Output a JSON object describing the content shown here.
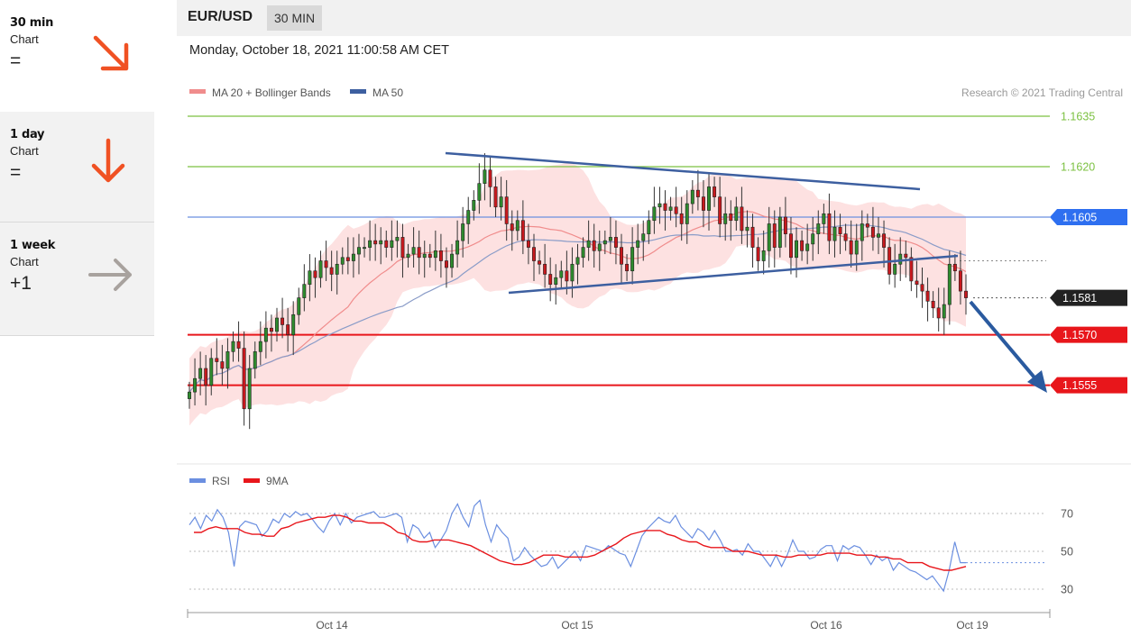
{
  "sidebar": {
    "items": [
      {
        "title": "30 min",
        "sub": "Chart",
        "sym": "=",
        "direction": "down-right",
        "color": "#f05123"
      },
      {
        "title": "1 day",
        "sub": "Chart",
        "sym": "=",
        "direction": "down",
        "color": "#f05123"
      },
      {
        "title": "1 week",
        "sub": "Chart",
        "sym": "+1",
        "direction": "right",
        "color": "#a8a29e"
      }
    ]
  },
  "header": {
    "pair": "EUR/USD",
    "timeframe": "30 MIN",
    "datetime": "Monday, October 18, 2021 11:00:58 AM CET"
  },
  "chart_data": [
    {
      "type": "candlestick",
      "legend": [
        {
          "name": "MA 20 + Bollinger Bands",
          "color": "#f08c8c"
        },
        {
          "name": "MA 50",
          "color": "#3d5fa0"
        }
      ],
      "legend_placement": "top-left",
      "credit": "Research © 2021 Trading Central",
      "ylim": [
        1.1542,
        1.164
      ],
      "x_labels": [
        "Oct 14",
        "Oct 15",
        "Oct 16",
        "Oct 19"
      ],
      "levels": [
        {
          "label": "1.1635",
          "value": 1.1635,
          "color": "#7cc142",
          "style": "line"
        },
        {
          "label": "1.1620",
          "value": 1.162,
          "color": "#7cc142",
          "style": "line"
        },
        {
          "label": "1.1605",
          "value": 1.1605,
          "color": "#6b8fe0",
          "style": "line",
          "tag_color": "#2e6ff0"
        },
        {
          "label": "1.1581",
          "value": 1.1581,
          "color": "#444444",
          "style": "dotted",
          "tag_color": "#222222"
        },
        {
          "label": "1.1570",
          "value": 1.157,
          "color": "#e8161b",
          "style": "line",
          "tag_color": "#e8161b"
        },
        {
          "label": "1.1555",
          "value": 1.1555,
          "color": "#e8161b",
          "style": "line",
          "tag_color": "#e8161b"
        }
      ],
      "close_series": [
        1.1553,
        1.1557,
        1.156,
        1.1555,
        1.1563,
        1.1562,
        1.156,
        1.1565,
        1.1568,
        1.1566,
        1.1548,
        1.156,
        1.1565,
        1.1568,
        1.1572,
        1.1571,
        1.1575,
        1.1573,
        1.157,
        1.1576,
        1.1581,
        1.1585,
        1.1589,
        1.1587,
        1.1592,
        1.159,
        1.1588,
        1.1591,
        1.1593,
        1.1592,
        1.1594,
        1.1596,
        1.1596,
        1.1598,
        1.1597,
        1.1598,
        1.1596,
        1.1598,
        1.1599,
        1.1593,
        1.1594,
        1.1596,
        1.1593,
        1.1594,
        1.1593,
        1.1595,
        1.1592,
        1.159,
        1.1594,
        1.1598,
        1.1603,
        1.1607,
        1.161,
        1.1615,
        1.1619,
        1.1614,
        1.1608,
        1.1611,
        1.1603,
        1.1601,
        1.1604,
        1.1598,
        1.1596,
        1.1592,
        1.1591,
        1.1588,
        1.1585,
        1.1587,
        1.1589,
        1.1586,
        1.1591,
        1.1593,
        1.1596,
        1.1598,
        1.1595,
        1.1597,
        1.1598,
        1.1599,
        1.1596,
        1.1591,
        1.1589,
        1.1596,
        1.1598,
        1.16,
        1.1604,
        1.1608,
        1.1609,
        1.1607,
        1.1608,
        1.1606,
        1.1603,
        1.1609,
        1.1613,
        1.1611,
        1.1607,
        1.1614,
        1.1611,
        1.1603,
        1.1606,
        1.1604,
        1.1608,
        1.1601,
        1.1602,
        1.1596,
        1.1592,
        1.1595,
        1.1603,
        1.1596,
        1.1605,
        1.16,
        1.1593,
        1.1598,
        1.1595,
        1.1597,
        1.16,
        1.1603,
        1.1606,
        1.1598,
        1.1602,
        1.16,
        1.1598,
        1.1594,
        1.1598,
        1.1603,
        1.1602,
        1.1599,
        1.16,
        1.1596,
        1.1588,
        1.1591,
        1.1594,
        1.1593,
        1.1586,
        1.1585,
        1.1583,
        1.158,
        1.1578,
        1.1575,
        1.1579,
        1.1591,
        1.1589,
        1.1583,
        1.1581
      ],
      "rsi_panel": {
        "legend": [
          {
            "name": "RSI",
            "color": "#6b8fe0"
          },
          {
            "name": "9MA",
            "color": "#e8161b"
          }
        ],
        "levels": [
          {
            "label": "70",
            "value": 70
          },
          {
            "label": "50",
            "value": 50
          },
          {
            "label": "30",
            "value": 30
          }
        ],
        "ylim": [
          23,
          85
        ],
        "rsi": [
          64,
          68,
          62,
          69,
          66,
          72,
          68,
          60,
          42,
          63,
          66,
          65,
          64,
          58,
          61,
          67,
          65,
          70,
          68,
          71,
          69,
          70,
          67,
          63,
          60,
          66,
          70,
          64,
          70,
          65,
          68,
          69,
          70,
          71,
          68,
          68,
          69,
          70,
          68,
          55,
          64,
          62,
          57,
          60,
          52,
          56,
          61,
          70,
          75,
          68,
          63,
          74,
          77,
          64,
          55,
          64,
          60,
          57,
          45,
          47,
          52,
          48,
          45,
          42,
          43,
          47,
          41,
          44,
          47,
          50,
          45,
          53,
          52,
          51,
          50,
          53,
          51,
          49,
          48,
          42,
          50,
          58,
          62,
          65,
          68,
          66,
          65,
          69,
          63,
          60,
          57,
          62,
          60,
          56,
          61,
          56,
          50,
          50,
          51,
          48,
          54,
          50,
          50,
          46,
          42,
          48,
          42,
          48,
          56,
          50,
          50,
          46,
          47,
          51,
          53,
          53,
          45,
          53,
          51,
          53,
          52,
          48,
          43,
          48,
          45,
          47,
          40,
          44,
          42,
          40,
          39,
          37,
          35,
          37,
          33,
          29,
          40,
          55,
          44,
          44
        ],
        "ma9": [
          60,
          60,
          62,
          63,
          62,
          62,
          62,
          60,
          59,
          59,
          58,
          58,
          62,
          63,
          65,
          66,
          67,
          68,
          68,
          69,
          69,
          68,
          66,
          66,
          65,
          65,
          65,
          63,
          60,
          59,
          56,
          55,
          55,
          56,
          56,
          56,
          55,
          54,
          53,
          51,
          49,
          47,
          45,
          44,
          43,
          43,
          44,
          46,
          48,
          48,
          48,
          47,
          47,
          47,
          47,
          48,
          50,
          52,
          54,
          57,
          59,
          60,
          61,
          61,
          61,
          59,
          58,
          56,
          55,
          55,
          53,
          52,
          52,
          52,
          50,
          50,
          50,
          49,
          48,
          48,
          48,
          47,
          47,
          48,
          48,
          48,
          48,
          49,
          49,
          49,
          49,
          48,
          48,
          48,
          47,
          47,
          46,
          46,
          44,
          44,
          44,
          42,
          41,
          40,
          40,
          41,
          42
        ],
        "rsi_last": 44
      }
    }
  ]
}
